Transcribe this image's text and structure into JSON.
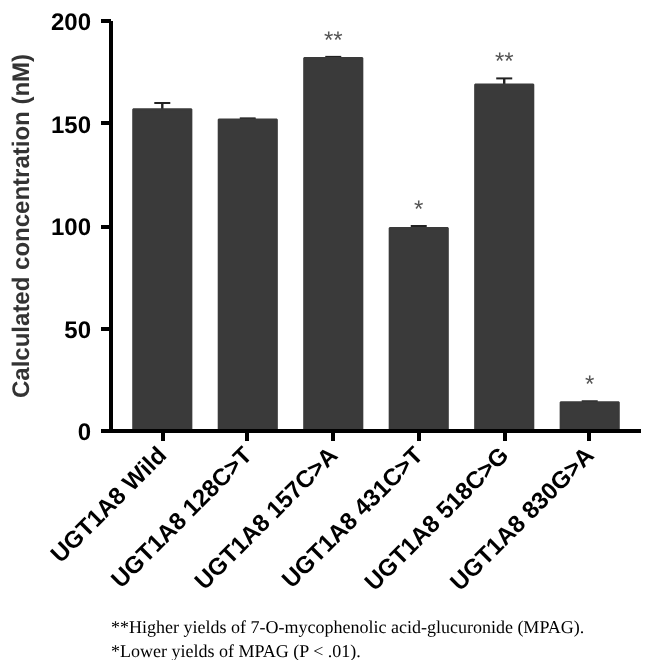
{
  "chart_data": {
    "type": "bar",
    "ylabel": "Calculated concentration (nM)",
    "categories": [
      "UGT1A8 Wild",
      "UGT1A8 128C>T",
      "UGT1A8 157C>A",
      "UGT1A8 431C>T",
      "UGT1A8 518C>G",
      "UGT1A8 830G>A"
    ],
    "values": [
      157,
      152,
      182,
      99,
      169,
      14
    ],
    "errors": [
      3,
      0.5,
      0.5,
      1,
      3,
      0.5
    ],
    "color": "#3a3a3a",
    "ylim": [
      0,
      200
    ],
    "yticks": [
      0,
      50,
      100,
      150,
      200
    ],
    "grid": false,
    "annotations": [
      {
        "text": "**",
        "x": "UGT1A8 157C>A",
        "y": 182
      },
      {
        "text": "*",
        "x": "UGT1A8 431C>T",
        "y": 99
      },
      {
        "text": "**",
        "x": "UGT1A8 518C>G",
        "y": 169
      },
      {
        "text": "*",
        "x": "UGT1A8 830G>A",
        "y": 14
      },
      "**Higher yields of 7-O-mycophenolic acid-glucuronide (MPAG). *Lower yields of MPAG (P < .01)."
    ]
  }
}
